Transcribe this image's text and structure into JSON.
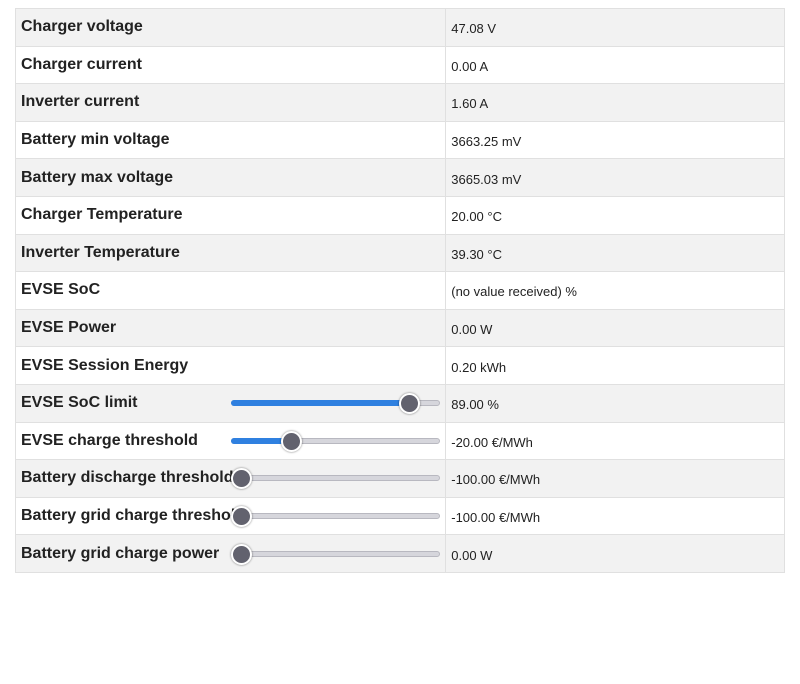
{
  "rows": [
    {
      "label": "Charger voltage",
      "value": "47.08 V"
    },
    {
      "label": "Charger current",
      "value": "0.00 A"
    },
    {
      "label": "Inverter current",
      "value": "1.60 A"
    },
    {
      "label": "Battery min voltage",
      "value": "3663.25 mV"
    },
    {
      "label": "Battery max voltage",
      "value": "3665.03 mV"
    },
    {
      "label": "Charger Temperature",
      "value": "20.00 °C"
    },
    {
      "label": "Inverter Temperature",
      "value": "39.30 °C"
    },
    {
      "label": "EVSE SoC",
      "value": "(no value received) %"
    },
    {
      "label": "EVSE Power",
      "value": "0.00 W"
    },
    {
      "label": "EVSE Session Energy",
      "value": "0.20 kWh"
    },
    {
      "label": "EVSE SoC limit",
      "value": "89.00 %",
      "slider_fraction": 0.89
    },
    {
      "label": "EVSE charge threshold",
      "value": "-20.00 €/MWh",
      "slider_fraction": 0.265
    },
    {
      "label": "Battery discharge threshold",
      "value": "-100.00 €/MWh",
      "slider_fraction": 0
    },
    {
      "label": "Battery grid charge threshold",
      "value": "-100.00 €/MWh",
      "slider_fraction": 0
    },
    {
      "label": "Battery grid charge power",
      "value": "0.00 W",
      "slider_fraction": 0
    }
  ],
  "colors": {
    "accent": "#2f80e0",
    "thumb": "#62626e"
  }
}
